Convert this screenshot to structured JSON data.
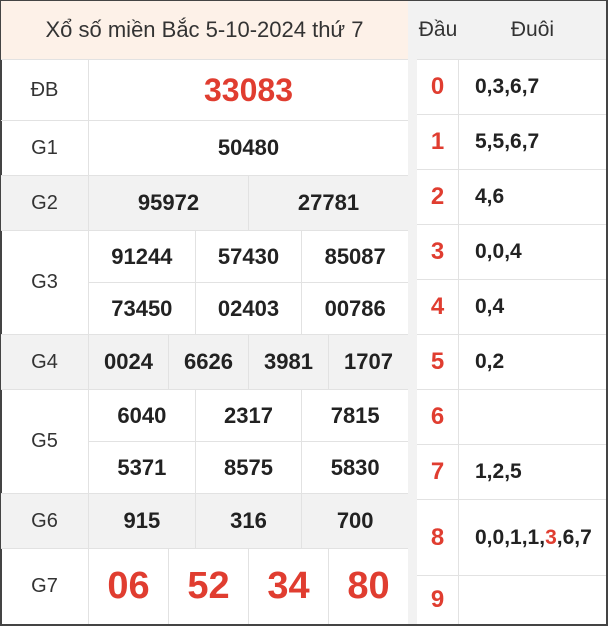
{
  "title": "Xổ số miền Bắc 5-10-2024 thứ 7",
  "special": {
    "label": "ĐB",
    "value": "33083"
  },
  "g1": {
    "label": "G1",
    "values": [
      "50480"
    ]
  },
  "g2": {
    "label": "G2",
    "values": [
      "95972",
      "27781"
    ]
  },
  "g3": {
    "label": "G3",
    "values": [
      "91244",
      "57430",
      "85087",
      "73450",
      "02403",
      "00786"
    ]
  },
  "g4": {
    "label": "G4",
    "values": [
      "0024",
      "6626",
      "3981",
      "1707"
    ]
  },
  "g5": {
    "label": "G5",
    "values": [
      "6040",
      "2317",
      "7815",
      "5371",
      "8575",
      "5830"
    ]
  },
  "g6": {
    "label": "G6",
    "values": [
      "915",
      "316",
      "700"
    ]
  },
  "g7": {
    "label": "G7",
    "values": [
      "06",
      "52",
      "34",
      "80"
    ]
  },
  "loto": {
    "head_label": "Đầu",
    "tail_label": "Đuôi",
    "rows": [
      {
        "head": "0",
        "tail": "0,3,6,7"
      },
      {
        "head": "1",
        "tail": "5,5,6,7"
      },
      {
        "head": "2",
        "tail": "4,6"
      },
      {
        "head": "3",
        "tail": "0,0,4"
      },
      {
        "head": "4",
        "tail": "0,4"
      },
      {
        "head": "5",
        "tail": "0,2"
      },
      {
        "head": "6",
        "tail": ""
      },
      {
        "head": "7",
        "tail": "1,2,5"
      },
      {
        "head": "8",
        "tail_before": "0,0,1,1,",
        "tail_highlight": "3",
        "tail_after": ",6,7"
      },
      {
        "head": "9",
        "tail": ""
      }
    ]
  },
  "colors": {
    "accent_red": "#e03d30",
    "header_bg": "#fdf1e8",
    "stripe": "#f2f2f2"
  }
}
